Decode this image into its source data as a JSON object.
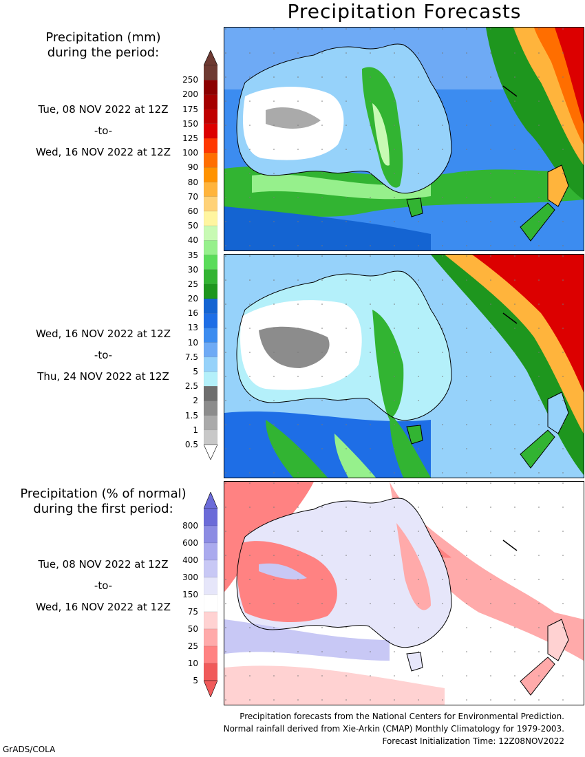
{
  "title": "Precipitation Forecasts",
  "amount_legend": {
    "heading_line1": "Precipitation (mm)",
    "heading_line2": "during the period:",
    "labels": [
      "250",
      "200",
      "175",
      "150",
      "125",
      "100",
      "90",
      "80",
      "70",
      "60",
      "50",
      "40",
      "35",
      "30",
      "25",
      "20",
      "16",
      "13",
      "10",
      "7.5",
      "5",
      "2.5",
      "2",
      "1.5",
      "1",
      "0.5"
    ],
    "colors": [
      "#6e3a32",
      "#8c0000",
      "#a50000",
      "#c00000",
      "#dc0000",
      "#ff3700",
      "#ff6e00",
      "#ff9200",
      "#ffb43c",
      "#ffd278",
      "#fff5a0",
      "#c8fab4",
      "#96f08c",
      "#5adc5a",
      "#32b432",
      "#1e961e",
      "#1464d2",
      "#1e6ee6",
      "#3c8cf0",
      "#6eaaf5",
      "#96d2fa",
      "#b4f0fa",
      "#6e6e6e",
      "#8c8c8c",
      "#aaaaaa",
      "#c8c8c8"
    ]
  },
  "percent_legend": {
    "heading_line1": "Precipitation (% of normal)",
    "heading_line2": "during the first period:",
    "labels": [
      "800",
      "600",
      "400",
      "300",
      "150",
      "75",
      "50",
      "25",
      "10",
      "5"
    ],
    "colors": [
      "#6b6bd8",
      "#8c8ce3",
      "#aaaaee",
      "#c8c8f5",
      "#e6e6fa",
      "#ffffff",
      "#ffd2d2",
      "#ffaaaa",
      "#ff8282",
      "#f05a5a"
    ]
  },
  "periods": [
    {
      "start": "Tue, 08 NOV 2022 at 12Z",
      "to": "-to-",
      "end": "Wed, 16 NOV 2022 at 12Z"
    },
    {
      "start": "Wed, 16 NOV 2022 at 12Z",
      "to": "-to-",
      "end": "Thu, 24 NOV 2022 at 12Z"
    },
    {
      "start": "Tue, 08 NOV 2022 at 12Z",
      "to": "-to-",
      "end": "Wed, 16 NOV 2022 at 12Z"
    }
  ],
  "footer": {
    "line1": "Precipitation forecasts from the National Centers for Environmental Prediction.",
    "line2": "Normal rainfall derived from Xie-Arkin (CMAP) Monthly Climatology for 1979-2003.",
    "line3": "Forecast Initialization Time: 12Z08NOV2022"
  },
  "credit": "GrADS/COLA",
  "map_region": "Australia and New Zealand",
  "palette": {
    "ocean_blue": "#3c8cf0",
    "land_dry": "#ffffff",
    "wet_green": "#32b432",
    "heavy_red": "#dc0000",
    "below_normal": "#ff8282",
    "above_normal": "#aaaaee"
  }
}
